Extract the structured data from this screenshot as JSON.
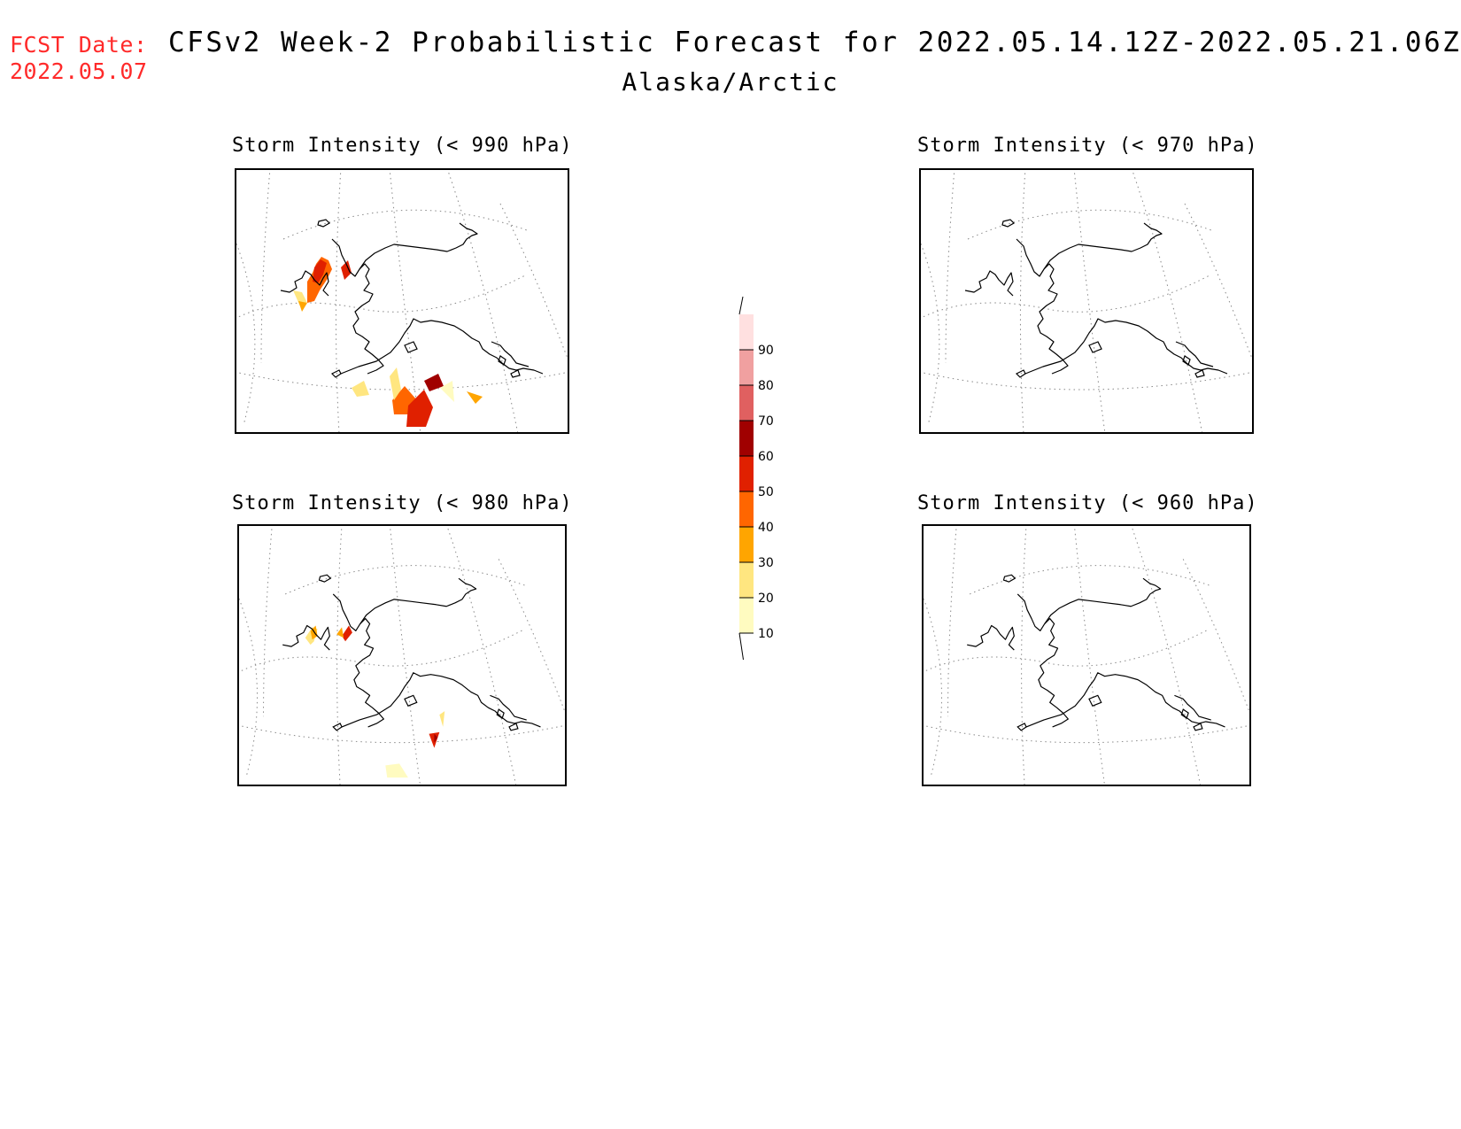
{
  "header": {
    "fcst_label": "FCST Date:",
    "fcst_date": "2022.05.07",
    "title": "CFSv2 Week-2 Probabilistic Forecast for 2022.05.14.12Z-2022.05.21.06Z",
    "subtitle": "Alaska/Arctic"
  },
  "panels": [
    {
      "title": "Storm Intensity (< 990 hPa)",
      "has_shading": true
    },
    {
      "title": "Storm Intensity (< 970 hPa)",
      "has_shading": false
    },
    {
      "title": "Storm Intensity (< 980 hPa)",
      "has_shading": true
    },
    {
      "title": "Storm Intensity (< 960 hPa)",
      "has_shading": false
    }
  ],
  "colorbar": {
    "levels": [
      "10",
      "20",
      "30",
      "40",
      "50",
      "60",
      "70",
      "80",
      "90"
    ],
    "colors": [
      "#fffbc0",
      "#ffe680",
      "#ffa500",
      "#ff6600",
      "#e02000",
      "#a00000",
      "#e06060",
      "#f0a0a0",
      "#ffe0e0"
    ]
  }
}
